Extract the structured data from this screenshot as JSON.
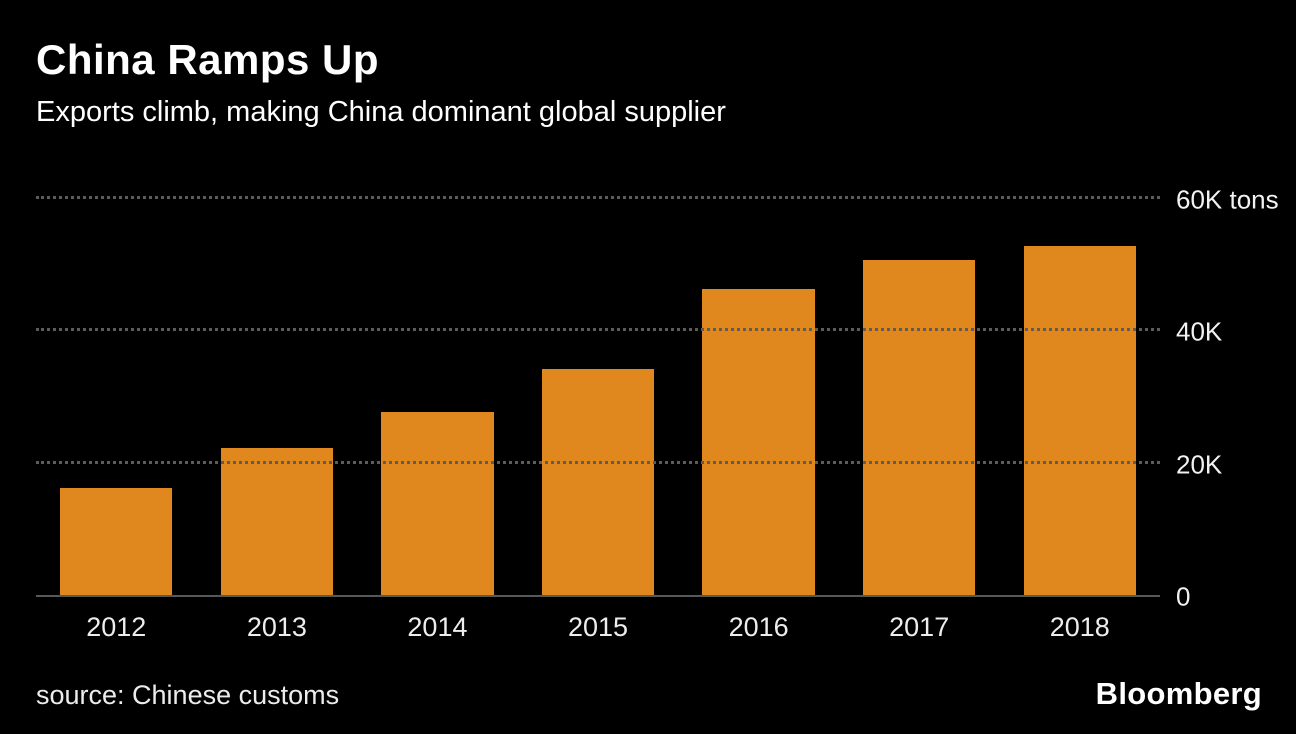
{
  "header": {
    "title": "China Ramps Up",
    "subtitle": "Exports climb, making China dominant global supplier"
  },
  "footer": {
    "source": "source: Chinese customs",
    "brand": "Bloomberg"
  },
  "colors": {
    "background": "#000000",
    "bar": "#E0871E",
    "gridline": "#5c5c5c",
    "baseline": "#56585a",
    "text": "#ffffff"
  },
  "chart_data": {
    "type": "bar",
    "title": "China Ramps Up",
    "subtitle": "Exports climb, making China dominant global supplier",
    "categories": [
      "2012",
      "2013",
      "2014",
      "2015",
      "2016",
      "2017",
      "2018"
    ],
    "values": [
      16.5,
      22.5,
      28,
      34.5,
      46.5,
      51,
      53
    ],
    "unit": "K tons",
    "xlabel": "",
    "ylabel": "",
    "ylim": [
      0,
      60
    ],
    "yticks": [
      {
        "value": 0,
        "label": "0"
      },
      {
        "value": 20,
        "label": "20K"
      },
      {
        "value": 40,
        "label": "40K"
      },
      {
        "value": 60,
        "label": "60K tons"
      }
    ],
    "grid": "horizontal-dotted",
    "legend_position": "none",
    "bar_color": "#E0871E"
  }
}
